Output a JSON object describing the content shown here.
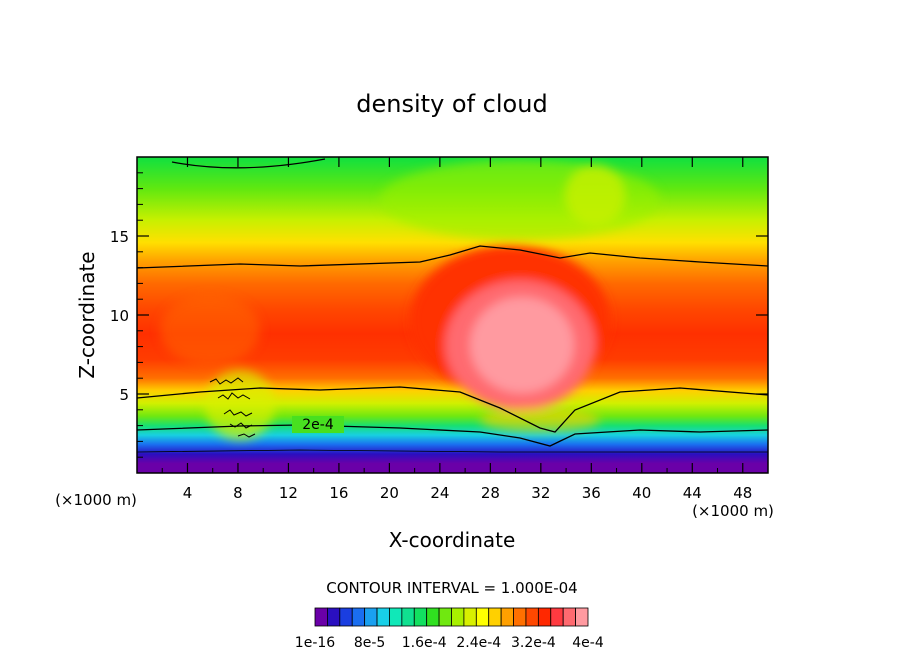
{
  "chart_data": {
    "type": "heatmap",
    "title": "density of cloud",
    "xlabel": "X-coordinate",
    "ylabel": "Z-coordinate",
    "x_unit": "(×1000 m)",
    "y_unit": "(×1000 m)",
    "xlim": [
      0,
      50
    ],
    "ylim": [
      0,
      20
    ],
    "x_ticks": [
      4,
      8,
      12,
      16,
      20,
      24,
      28,
      32,
      36,
      40,
      44,
      48
    ],
    "y_ticks": [
      5,
      10,
      15
    ],
    "contour_label": "2e-4",
    "contour_interval_text": "CONTOUR INTERVAL = 1.000E-04",
    "colorbar": {
      "levels": 22,
      "labels": [
        "1e-16",
        "8e-5",
        "1.6e-4",
        "2.4e-4",
        "3.2e-4",
        "4e-4"
      ],
      "colors": [
        "#6a00a8",
        "#2a0fc0",
        "#1a3ee0",
        "#1a6ef0",
        "#1aa0f0",
        "#18d0e8",
        "#10e8b8",
        "#10e090",
        "#12e060",
        "#30e020",
        "#70e810",
        "#a8f000",
        "#d8f000",
        "#ffff00",
        "#ffd000",
        "#ffa000",
        "#ff7000",
        "#ff4800",
        "#ff2800",
        "#ff3a40",
        "#ff6a70",
        "#ff9aa0"
      ]
    }
  }
}
